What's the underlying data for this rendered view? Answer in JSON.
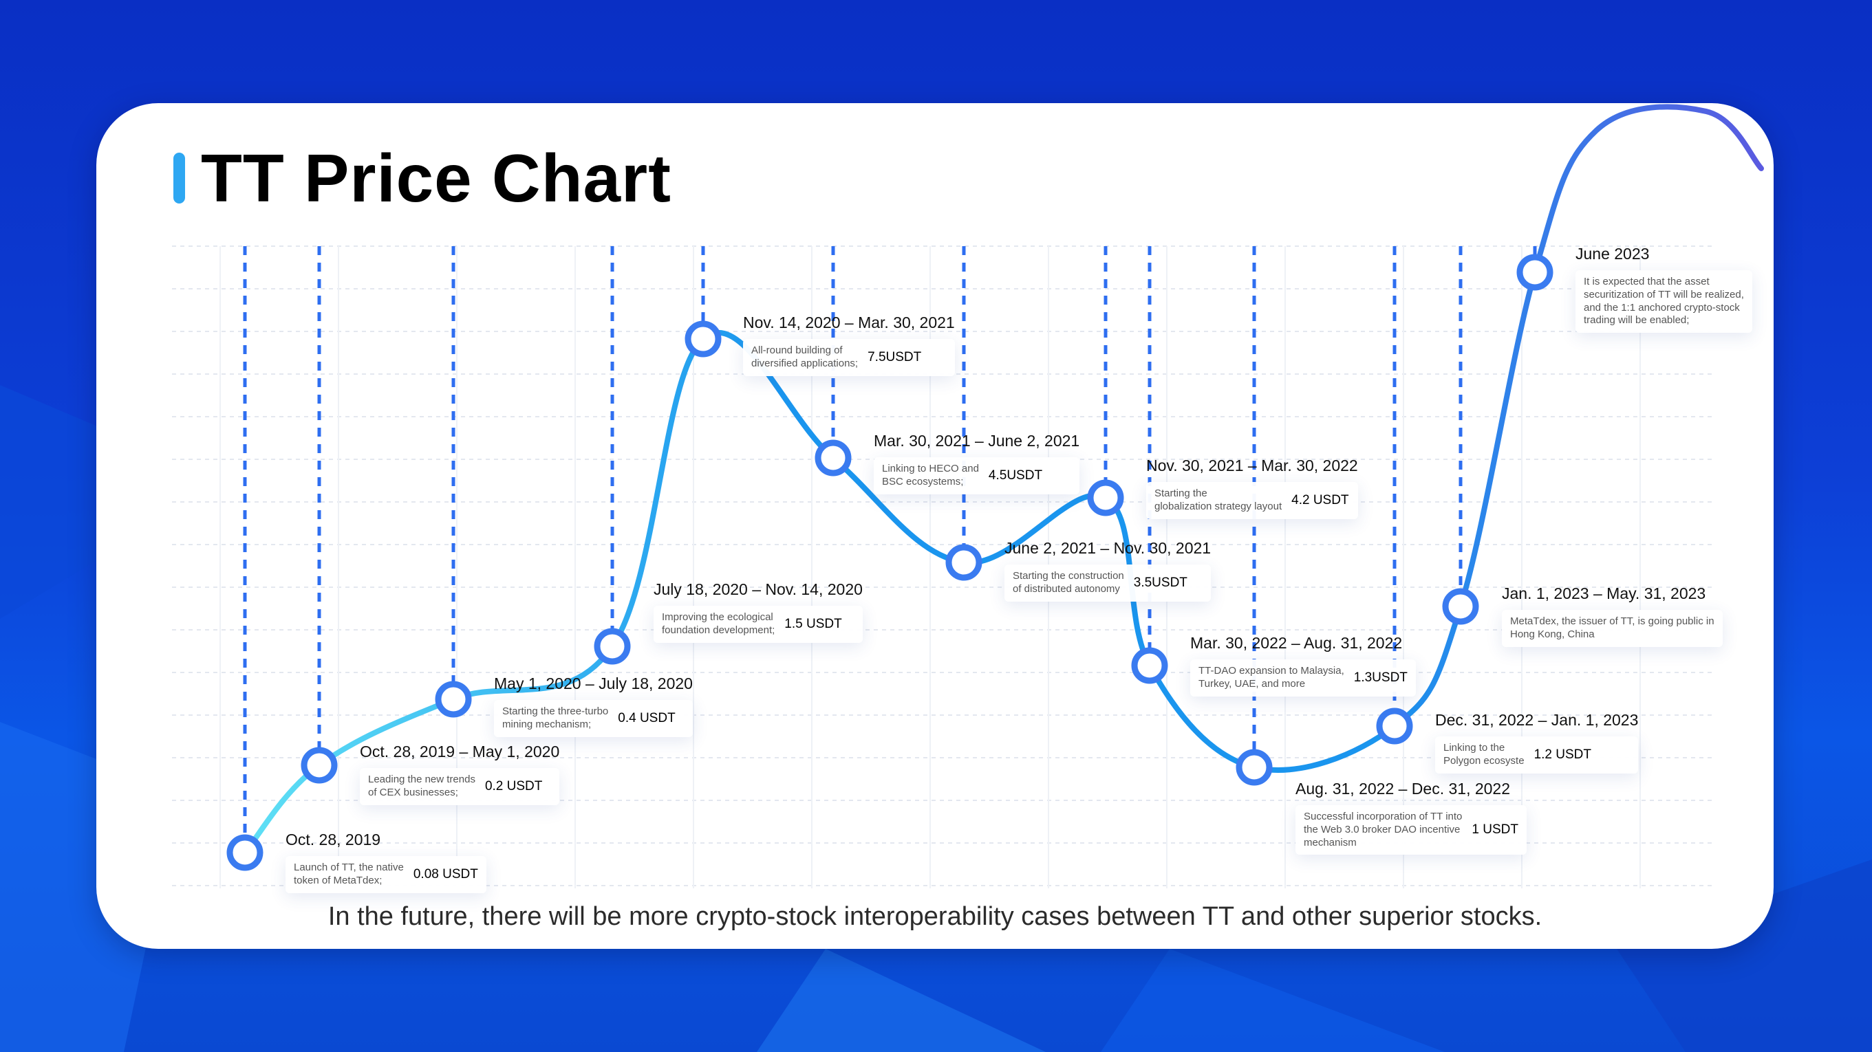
{
  "title": "TT Price Chart",
  "footer": "In the future, there will be more crypto-stock interoperability cases between TT and other superior stocks.",
  "colors": {
    "line_start": "#5fe0f5",
    "line_mid": "#1a95ee",
    "line_end": "#5a5ae0",
    "marker_stroke": "#3a7bf0",
    "dashed_guides": "#2e6ef0",
    "title_accent": "#2ea7f2"
  },
  "chart_data": {
    "type": "line",
    "title": "TT Price Chart",
    "xlabel": "",
    "ylabel": "",
    "grid": true,
    "unit": "USDT",
    "points": [
      {
        "period": "Oct. 28, 2019",
        "description": "Launch of TT, the native\ntoken of MetaTdex;",
        "price_label": "0.08 USDT",
        "price": 0.08
      },
      {
        "period": "Oct. 28, 2019 – May 1, 2020",
        "description": "Leading the new trends\nof CEX businesses;",
        "price_label": "0.2 USDT",
        "price": 0.2
      },
      {
        "period": "May 1, 2020 – July 18, 2020",
        "description": "Starting the three-turbo\nmining mechanism;",
        "price_label": "0.4 USDT",
        "price": 0.4
      },
      {
        "period": "July 18, 2020 – Nov. 14, 2020",
        "description": "Improving the ecological\nfoundation development;",
        "price_label": "1.5 USDT",
        "price": 1.5
      },
      {
        "period": "Nov. 14, 2020 – Mar. 30, 2021",
        "description": "All-round building of\ndiversified applications;",
        "price_label": "7.5USDT",
        "price": 7.5
      },
      {
        "period": "Mar. 30, 2021 – June 2, 2021",
        "description": "Linking to HECO and\nBSC ecosystems;",
        "price_label": "4.5USDT",
        "price": 4.5
      },
      {
        "period": "June 2, 2021 – Nov. 30, 2021",
        "description": "Starting the construction\nof distributed autonomy",
        "price_label": "3.5USDT",
        "price": 3.5
      },
      {
        "period": "Nov. 30, 2021 – Mar. 30, 2022",
        "description": "Starting the\nglobalization strategy layout",
        "price_label": "4.2 USDT",
        "price": 4.2
      },
      {
        "period": "Mar. 30, 2022 – Aug. 31, 2022",
        "description": "TT-DAO expansion to Malaysia,\nTurkey, UAE, and more",
        "price_label": "1.3USDT",
        "price": 1.3
      },
      {
        "period": "Aug. 31, 2022 – Dec. 31, 2022",
        "description": "Successful incorporation of TT into\nthe Web 3.0 broker DAO incentive\nmechanism",
        "price_label": "1 USDT",
        "price": 1
      },
      {
        "period": "Dec. 31, 2022 – Jan. 1, 2023",
        "description": "Linking to the\nPolygon ecosyste",
        "price_label": "1.2 USDT",
        "price": 1.2
      },
      {
        "period": "Jan. 1, 2023 – May. 31, 2023",
        "description": "MetaTdex, the issuer of TT, is going public in\nHong Kong, China",
        "price_label": "",
        "price": null
      },
      {
        "period": "June 2023",
        "description": "It is expected that the asset\nsecuritization of TT will be realized,\nand the 1:1 anchored crypto-stock\ntrading will be enabled;",
        "price_label": "",
        "price": null
      }
    ]
  }
}
